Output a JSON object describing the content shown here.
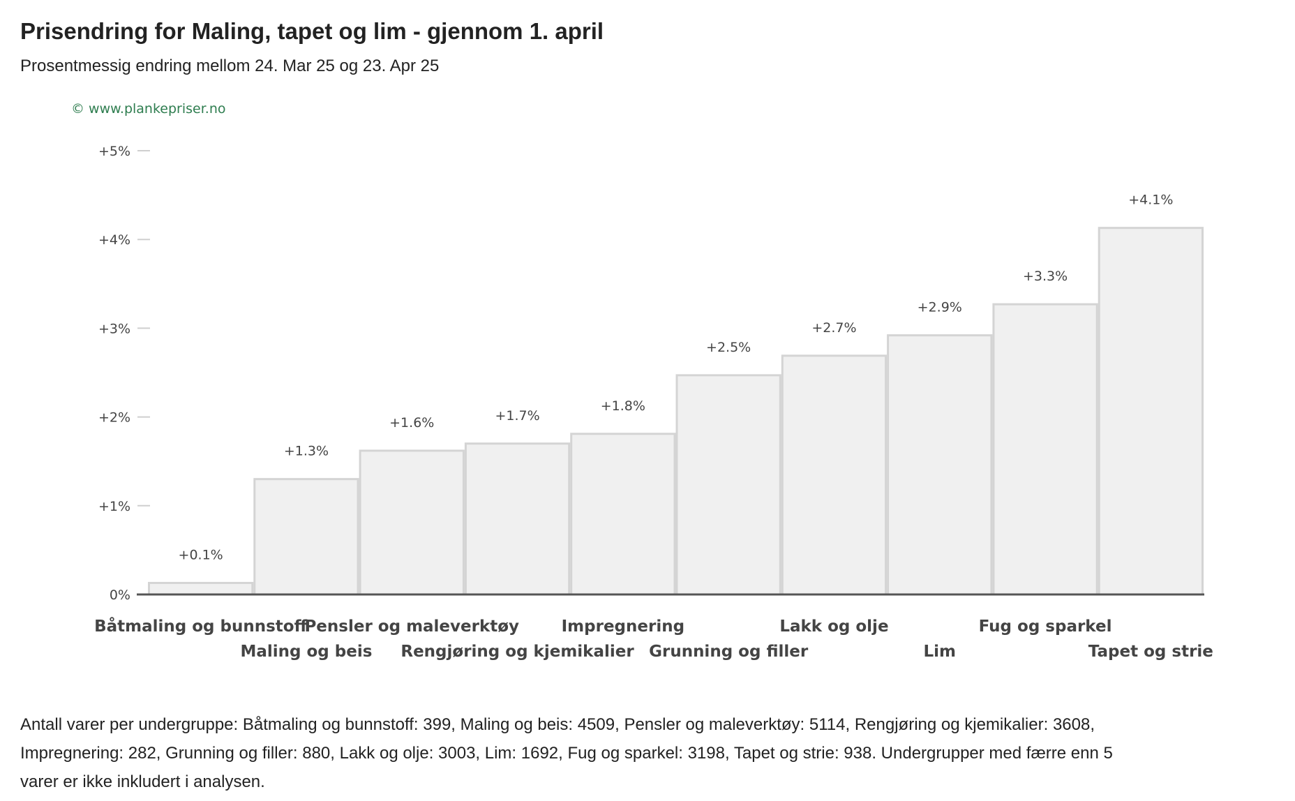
{
  "chart_data": {
    "type": "bar",
    "title": "Prisendring for Maling, tapet og lim - gjennom 1. april",
    "subtitle": "Prosentmessig endring mellom 24. Mar 25 og 23. Apr 25",
    "credit": "© www.plankepriser.no",
    "categories": [
      "Båtmaling og bunnstoff",
      "Maling og beis",
      "Pensler og maleverktøy",
      "Rengjøring og kjemikalier",
      "Impregnering",
      "Grunning og filler",
      "Lakk og olje",
      "Lim",
      "Fug og sparkel",
      "Tapet og strie"
    ],
    "values": [
      0.13,
      1.3,
      1.62,
      1.7,
      1.81,
      2.47,
      2.69,
      2.92,
      3.27,
      4.13
    ],
    "value_labels": [
      "+0.1%",
      "+1.3%",
      "+1.6%",
      "+1.7%",
      "+1.8%",
      "+2.5%",
      "+2.7%",
      "+2.9%",
      "+3.3%",
      "+4.1%"
    ],
    "yticks": [
      0,
      1,
      2,
      3,
      4,
      5
    ],
    "ytick_labels": [
      "0%",
      "+1%",
      "+2%",
      "+3%",
      "+4%",
      "+5%"
    ],
    "ylim": [
      0,
      5
    ],
    "xlabel": "",
    "ylabel": "",
    "grid": false,
    "legend": "none",
    "colors": {
      "bar_fill": "#f0f0f0",
      "bar_stroke": "#d4d4d4",
      "axis": "#555555",
      "credit": "#2e7d4f"
    }
  },
  "footnote": "Antall varer per undergruppe: Båtmaling og bunnstoff: 399, Maling og beis: 4509, Pensler og maleverktøy: 5114, Rengjøring og kjemikalier: 3608, Impregnering: 282, Grunning og filler: 880, Lakk og olje: 3003, Lim: 1692, Fug og sparkel: 3198, Tapet og strie: 938. Undergrupper med færre enn 5 varer er ikke inkludert i analysen."
}
